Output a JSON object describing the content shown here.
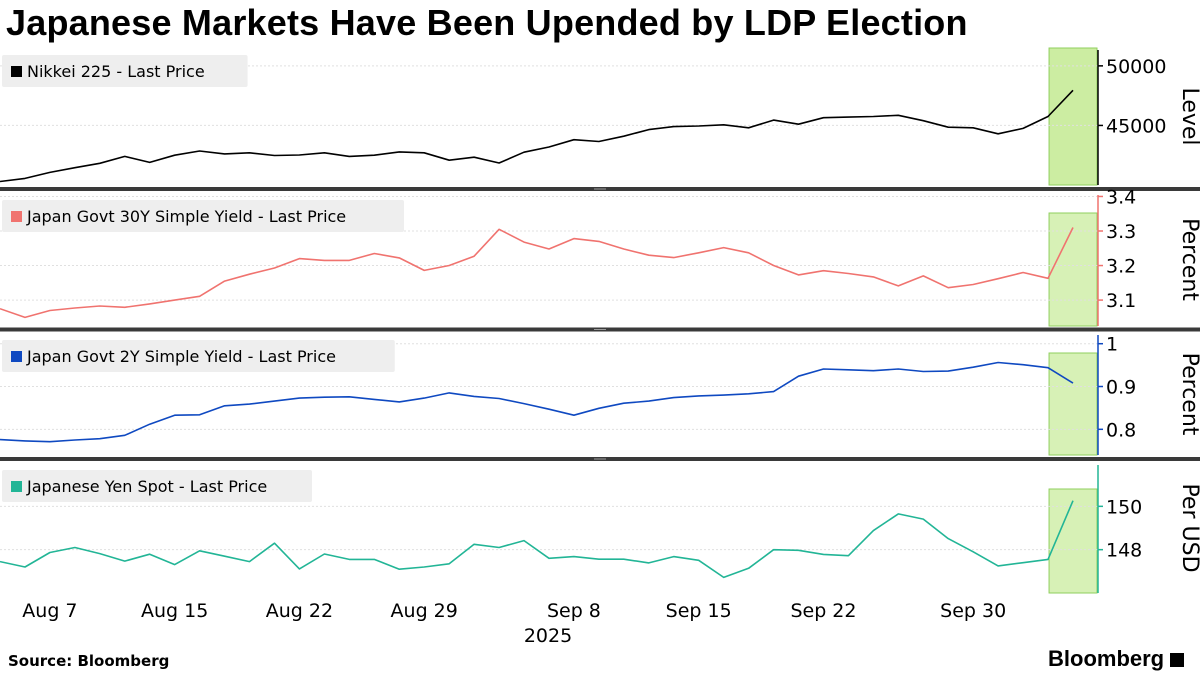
{
  "title": "Japanese Markets Have Been Upended by LDP Election",
  "source": "Source: Bloomberg",
  "brand": "Bloomberg",
  "brand_icon": "bloomberg-terminal-icon",
  "highlight_color": "#c9ec9d",
  "chart_data": {
    "type": "line",
    "x_labels": [
      {
        "label": "Aug 7",
        "index": 2
      },
      {
        "label": "Aug 15",
        "index": 7
      },
      {
        "label": "Aug 22",
        "index": 12
      },
      {
        "label": "Aug 29",
        "index": 17
      },
      {
        "label": "Sep 8",
        "index": 23
      },
      {
        "label": "Sep 15",
        "index": 28
      },
      {
        "label": "Sep 22",
        "index": 33
      },
      {
        "label": "Sep 30",
        "index": 39
      }
    ],
    "year_label": "2025",
    "highlight_from_index": 42,
    "panels": [
      {
        "name": "Nikkei 225 - Last Price",
        "ylabel": "Level",
        "color": "#000000",
        "ticks": [
          45000,
          50000
        ],
        "ylim": [
          40000,
          51500
        ],
        "values": [
          40290,
          40550,
          41060,
          41450,
          41820,
          42400,
          41900,
          42500,
          42850,
          42610,
          42700,
          42480,
          42520,
          42700,
          42400,
          42500,
          42780,
          42700,
          42080,
          42330,
          41850,
          42750,
          43190,
          43800,
          43650,
          44100,
          44650,
          44900,
          44950,
          45050,
          44800,
          45450,
          45100,
          45650,
          45700,
          45750,
          45850,
          45400,
          44850,
          44800,
          44300,
          44750,
          45750,
          47950
        ]
      },
      {
        "name": "Japan Govt 30Y Simple Yield - Last Price",
        "ylabel": "Percent",
        "color": "#f0736f",
        "ticks": [
          3.1,
          3.2,
          3.3,
          3.4
        ],
        "ylim": [
          3.025,
          3.41
        ],
        "values": [
          3.075,
          3.05,
          3.07,
          3.077,
          3.083,
          3.079,
          3.089,
          3.1,
          3.111,
          3.155,
          3.175,
          3.193,
          3.22,
          3.215,
          3.215,
          3.235,
          3.222,
          3.186,
          3.2,
          3.227,
          3.305,
          3.268,
          3.248,
          3.278,
          3.27,
          3.248,
          3.23,
          3.223,
          3.237,
          3.252,
          3.237,
          3.2,
          3.173,
          3.185,
          3.177,
          3.167,
          3.141,
          3.17,
          3.136,
          3.145,
          3.162,
          3.18,
          3.163,
          3.31
        ]
      },
      {
        "name": "Japan Govt 2Y Simple Yield - Last Price",
        "ylabel": "Percent",
        "color": "#0f49c1",
        "ticks": [
          0.8,
          0.9,
          1.0
        ],
        "ylim": [
          0.74,
          1.025
        ],
        "values": [
          0.776,
          0.773,
          0.771,
          0.775,
          0.778,
          0.786,
          0.812,
          0.833,
          0.834,
          0.855,
          0.859,
          0.866,
          0.873,
          0.875,
          0.876,
          0.87,
          0.864,
          0.873,
          0.885,
          0.877,
          0.872,
          0.86,
          0.847,
          0.833,
          0.849,
          0.861,
          0.866,
          0.874,
          0.878,
          0.88,
          0.883,
          0.888,
          0.924,
          0.941,
          0.939,
          0.937,
          0.941,
          0.935,
          0.936,
          0.945,
          0.956,
          0.951,
          0.944,
          0.908
        ]
      },
      {
        "name": "Japanese Yen Spot - Last Price",
        "ylabel": "Per USD",
        "color": "#22b596",
        "ticks": [
          148,
          150
        ],
        "ylim": [
          146.0,
          152.0
        ],
        "values": [
          147.45,
          147.2,
          147.87,
          148.1,
          147.82,
          147.47,
          147.79,
          147.31,
          147.95,
          147.7,
          147.45,
          148.3,
          147.11,
          147.8,
          147.55,
          147.55,
          147.1,
          147.2,
          147.35,
          148.25,
          148.1,
          148.42,
          147.6,
          147.68,
          147.56,
          147.56,
          147.39,
          147.68,
          147.51,
          146.72,
          147.14,
          148.0,
          147.97,
          147.78,
          147.72,
          148.88,
          149.65,
          149.41,
          148.51,
          147.9,
          147.25,
          147.4,
          147.55,
          150.26
        ]
      }
    ]
  }
}
